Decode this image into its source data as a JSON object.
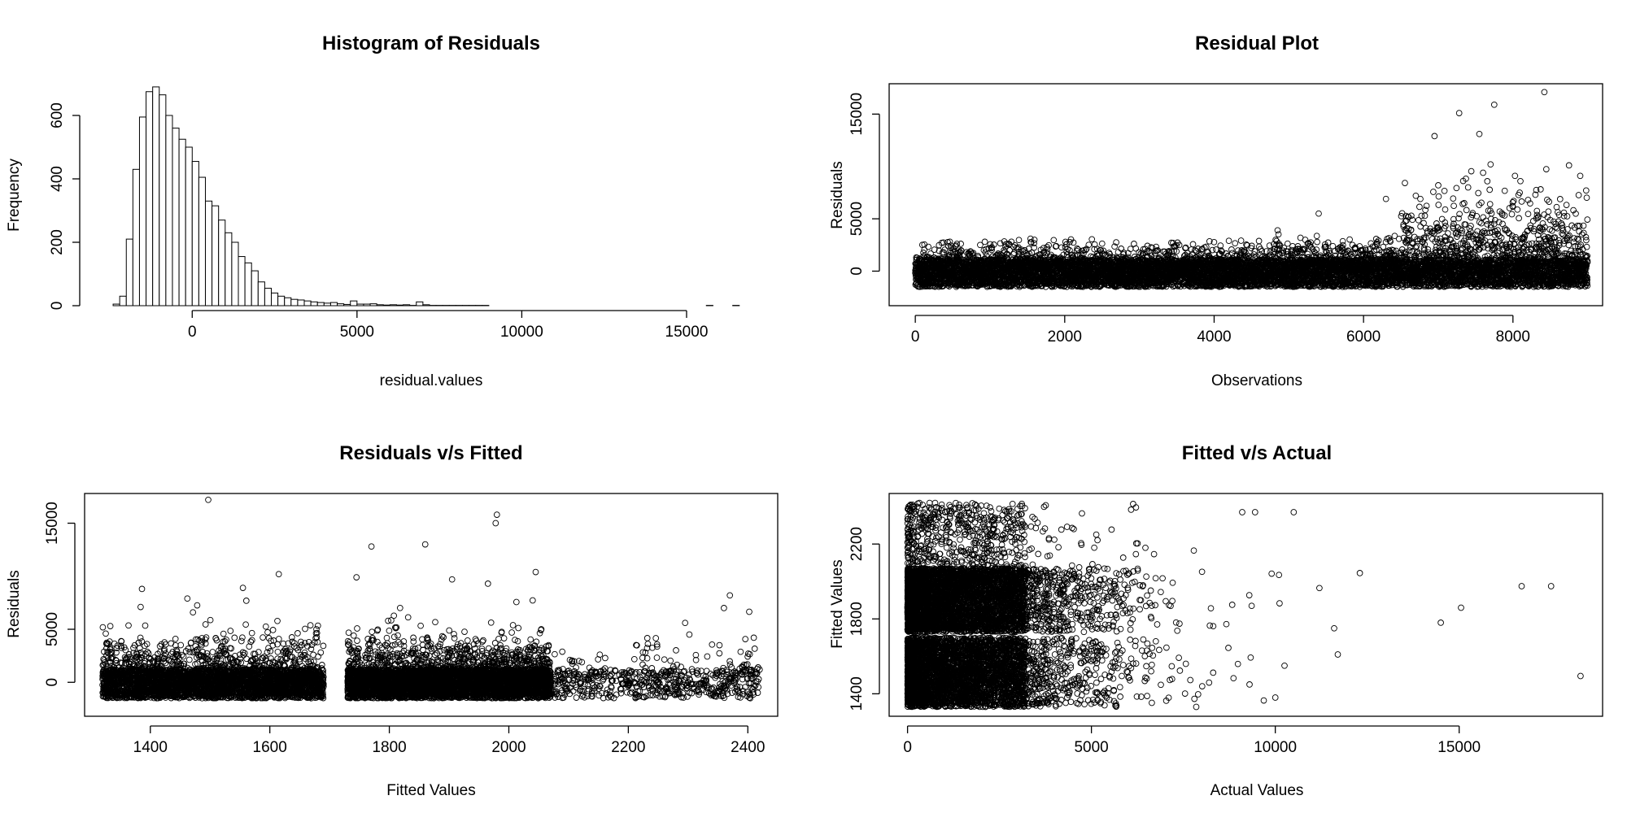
{
  "chart_data": [
    {
      "type": "bar",
      "title": "Histogram of Residuals",
      "xlabel": "residual.values",
      "ylabel": "Frequency",
      "xlim": [
        -2500,
        17000
      ],
      "ylim": [
        0,
        700
      ],
      "x_ticks": [
        0,
        5000,
        10000,
        15000
      ],
      "y_ticks": [
        0,
        200,
        400,
        600
      ],
      "bin_start": -2400,
      "bin_width": 200,
      "values": [
        5,
        30,
        210,
        430,
        595,
        675,
        690,
        665,
        600,
        560,
        525,
        500,
        455,
        405,
        330,
        315,
        270,
        230,
        200,
        155,
        135,
        110,
        75,
        55,
        40,
        30,
        25,
        20,
        18,
        15,
        12,
        10,
        8,
        10,
        6,
        4,
        15,
        5,
        5,
        6,
        3,
        2,
        3,
        2,
        3,
        1,
        12,
        3,
        1,
        1,
        1,
        1,
        1,
        1,
        1,
        1,
        1,
        0,
        0,
        0,
        0,
        0,
        0,
        0,
        0,
        0,
        0,
        0,
        0,
        0,
        0,
        0,
        0,
        0,
        0,
        0,
        0,
        0,
        0,
        0,
        0,
        0,
        0,
        0,
        0,
        0,
        0,
        0,
        0,
        0,
        1,
        0,
        0,
        0,
        1
      ]
    },
    {
      "type": "scatter",
      "title": "Residual Plot",
      "xlabel": "Observations",
      "ylabel": "Residuals",
      "xlim": [
        -350,
        9200
      ],
      "ylim": [
        -3300,
        17900
      ],
      "x_ticks": [
        0,
        2000,
        4000,
        6000,
        8000
      ],
      "y_ticks": [
        0,
        5000,
        15000
      ],
      "n_points": 9000,
      "highlighted_points": [
        {
          "x": 8420,
          "y": 17100
        },
        {
          "x": 7750,
          "y": 15900
        },
        {
          "x": 7280,
          "y": 15100
        },
        {
          "x": 6950,
          "y": 12900
        },
        {
          "x": 7550,
          "y": 13100
        },
        {
          "x": 7700,
          "y": 10200
        },
        {
          "x": 8750,
          "y": 10100
        },
        {
          "x": 6300,
          "y": 6900
        },
        {
          "x": 5400,
          "y": 5500
        },
        {
          "x": 4850,
          "y": 3900
        },
        {
          "x": 8100,
          "y": 8600
        },
        {
          "x": 7000,
          "y": 8200
        },
        {
          "x": 7400,
          "y": 8000
        },
        {
          "x": 6700,
          "y": 7200
        },
        {
          "x": 8900,
          "y": 9100
        },
        {
          "x": 8300,
          "y": 7300
        },
        {
          "x": 7600,
          "y": 9400
        },
        {
          "x": 8980,
          "y": 7700
        }
      ]
    },
    {
      "type": "scatter",
      "title": "Residuals v/s Fitted",
      "xlabel": "Fitted Values",
      "ylabel": "Residuals",
      "xlim": [
        1290,
        2450
      ],
      "ylim": [
        -3200,
        17800
      ],
      "x_ticks": [
        1400,
        1600,
        1800,
        2000,
        2200,
        2400
      ],
      "y_ticks": [
        0,
        5000,
        15000
      ],
      "n_points": 9000,
      "highlighted_points": [
        {
          "x": 1497,
          "y": 17200
        },
        {
          "x": 1980,
          "y": 15800
        },
        {
          "x": 1978,
          "y": 15000
        },
        {
          "x": 1860,
          "y": 13000
        },
        {
          "x": 1770,
          "y": 12800
        },
        {
          "x": 2045,
          "y": 10400
        },
        {
          "x": 1615,
          "y": 10200
        },
        {
          "x": 1745,
          "y": 9900
        },
        {
          "x": 1905,
          "y": 9700
        },
        {
          "x": 1965,
          "y": 9300
        },
        {
          "x": 1386,
          "y": 8800
        },
        {
          "x": 1555,
          "y": 8900
        },
        {
          "x": 2370,
          "y": 8200
        },
        {
          "x": 1462,
          "y": 7900
        },
        {
          "x": 1333,
          "y": 5300
        },
        {
          "x": 2360,
          "y": 7000
        },
        {
          "x": 2295,
          "y": 5600
        },
        {
          "x": 2410,
          "y": 4200
        }
      ]
    },
    {
      "type": "scatter",
      "title": "Fitted v/s Actual",
      "xlabel": "Actual Values",
      "ylabel": "Fitted Values",
      "xlim": [
        -500,
        18900
      ],
      "ylim": [
        1280,
        2470
      ],
      "x_ticks": [
        0,
        5000,
        10000,
        15000
      ],
      "y_ticks": [
        1400,
        1800,
        2200
      ],
      "n_points": 9000,
      "highlighted_points": [
        {
          "x": 18300,
          "y": 1495
        },
        {
          "x": 16700,
          "y": 1975
        },
        {
          "x": 17500,
          "y": 1975
        },
        {
          "x": 15050,
          "y": 1860
        },
        {
          "x": 14500,
          "y": 1780
        },
        {
          "x": 12300,
          "y": 2045
        },
        {
          "x": 11700,
          "y": 1610
        },
        {
          "x": 11600,
          "y": 1750
        },
        {
          "x": 11200,
          "y": 1965
        },
        {
          "x": 10500,
          "y": 2370
        },
        {
          "x": 10000,
          "y": 1380
        },
        {
          "x": 10250,
          "y": 1550
        },
        {
          "x": 9450,
          "y": 2370
        },
        {
          "x": 9100,
          "y": 2370
        },
        {
          "x": 8200,
          "y": 1460
        },
        {
          "x": 7850,
          "y": 1330
        },
        {
          "x": 10100,
          "y": 2035
        },
        {
          "x": 9300,
          "y": 1450
        }
      ]
    }
  ]
}
